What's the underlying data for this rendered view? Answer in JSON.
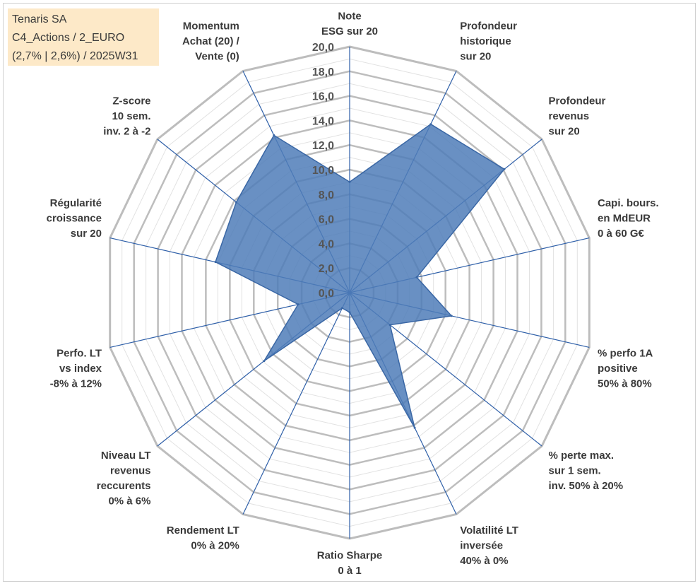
{
  "info": {
    "line1": "Tenaris SA",
    "line2": "C4_Actions / 2_EURO",
    "line3": "(2,7% | 2,6%) / 2025W31"
  },
  "chart_data": {
    "type": "radar",
    "title": "",
    "rlim": [
      0,
      20
    ],
    "ticks": [
      "0,0",
      "2,0",
      "4,0",
      "6,0",
      "8,0",
      "10,0",
      "12,0",
      "14,0",
      "16,0",
      "18,0",
      "20,0"
    ],
    "grid": true,
    "legend": "none",
    "axes": [
      [
        "Note",
        "ESG sur 20"
      ],
      [
        "Profondeur",
        "historique",
        "sur 20"
      ],
      [
        "Profondeur",
        "revenus",
        "sur 20"
      ],
      [
        "Capi. bours.",
        "en MdEUR",
        "0 à 60 G€"
      ],
      [
        "% perfo 1A",
        "positive",
        "50% à 80%"
      ],
      [
        "% perte max.",
        "sur 1 sem.",
        "inv. 50% à 20%"
      ],
      [
        "Volatilité LT",
        "inversée",
        "40% à 0%"
      ],
      [
        "Ratio Sharpe",
        "0 à 1"
      ],
      [
        "Rendement LT",
        "0% à 20%"
      ],
      [
        "Niveau LT",
        "revenus",
        "reccurents",
        "0% à 6%"
      ],
      [
        "Perfo. LT",
        "vs index",
        "-8% à 12%"
      ],
      [
        "Régularité",
        "croissance",
        "sur 20"
      ],
      [
        "Z-score",
        "10 sem.",
        "inv. 2 à -2"
      ],
      [
        "Momentum",
        "Achat (20) /",
        "Vente (0)"
      ]
    ],
    "series": [
      {
        "values": [
          9.0,
          15.2,
          16.1,
          5.6,
          8.5,
          4.2,
          12.2,
          1.6,
          1.4,
          8.9,
          4.3,
          11.2,
          11.8,
          14.2
        ]
      }
    ],
    "colors": {
      "fill": "#4f7cb8",
      "stroke": "#3a67a5",
      "grid": "#c0c0c0",
      "spoke": "#2e5fa8"
    }
  }
}
